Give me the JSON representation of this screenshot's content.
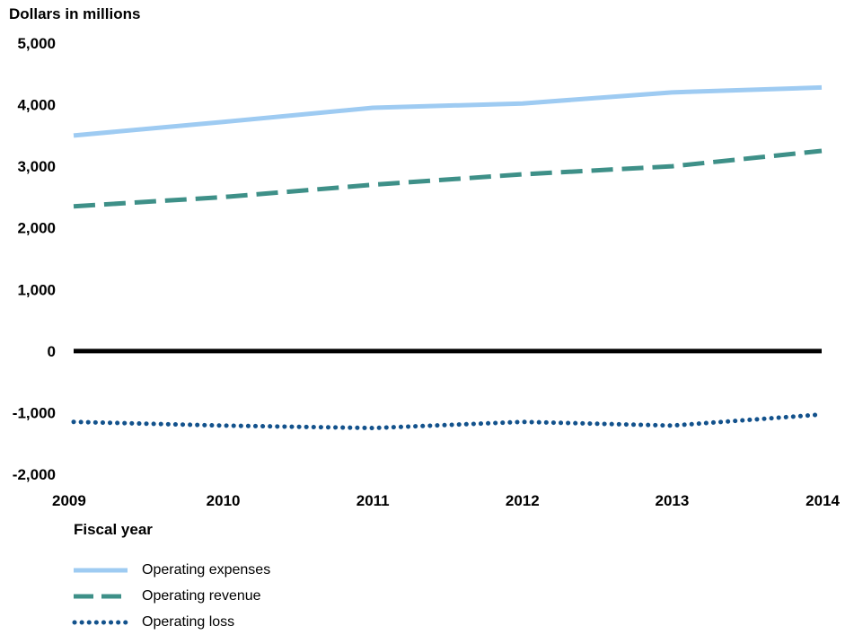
{
  "chart_data": {
    "type": "line",
    "ylabel": "Dollars in millions",
    "xlabel": "Fiscal year",
    "x": [
      "2009",
      "2010",
      "2011",
      "2012",
      "2013",
      "2014"
    ],
    "ylim": [
      -2000,
      5000
    ],
    "yticks": [
      "5,000",
      "4,000",
      "3,000",
      "2,000",
      "1,000",
      "0",
      "-1,000",
      "-2,000"
    ],
    "ytick_values": [
      5000,
      4000,
      3000,
      2000,
      1000,
      0,
      -1000,
      -2000
    ],
    "grid": false,
    "legend_position": "bottom-left",
    "series": [
      {
        "name": "Operating expenses",
        "values": [
          3500,
          3720,
          3950,
          4020,
          4200,
          4280
        ],
        "color": "#9ecbf2",
        "style": "solid"
      },
      {
        "name": "Operating revenue",
        "values": [
          2350,
          2500,
          2700,
          2870,
          3000,
          3250
        ],
        "color": "#3e9088",
        "style": "dashed"
      },
      {
        "name": "Operating loss",
        "values": [
          -1150,
          -1210,
          -1250,
          -1150,
          -1210,
          -1030
        ],
        "color": "#13528c",
        "style": "dotted"
      }
    ]
  }
}
